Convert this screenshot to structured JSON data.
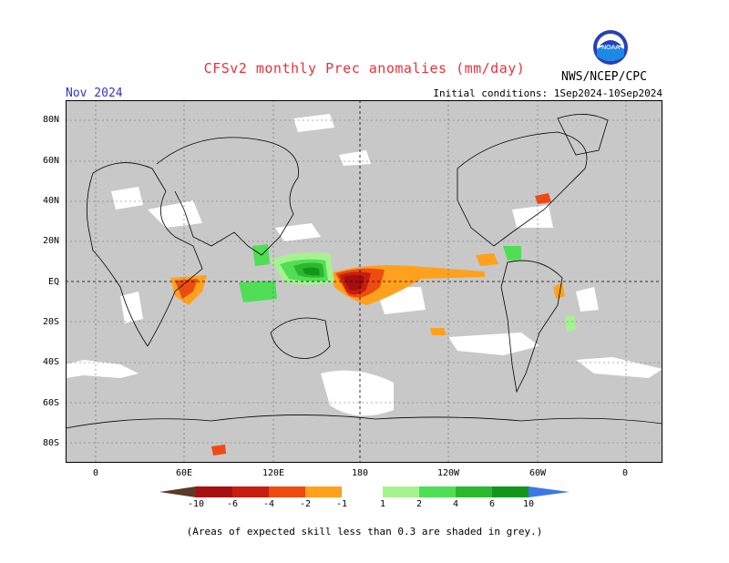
{
  "header": {
    "title": "CFSv2 monthly Prec anomalies (mm/day)",
    "month": "Nov 2024",
    "initial_conditions": "Initial conditions: 1Sep2024-10Sep2024",
    "agency": "NWS/NCEP/CPC",
    "logo_text": "NOAA"
  },
  "map": {
    "lat_labels": [
      "80N",
      "60N",
      "40N",
      "20N",
      "EQ",
      "20S",
      "40S",
      "60S",
      "80S"
    ],
    "lon_labels": [
      "0",
      "60E",
      "120E",
      "180",
      "120W",
      "60W",
      "0"
    ]
  },
  "colorbar": {
    "labels": [
      "-10",
      "-6",
      "-4",
      "-2",
      "-1",
      "1",
      "2",
      "4",
      "6",
      "10"
    ],
    "colors": [
      "#5a3a2a",
      "#a50f0f",
      "#c81e0f",
      "#ee4a12",
      "#ffa11c",
      "#ffffff",
      "#a6f28f",
      "#4fde56",
      "#2cb82d",
      "#13951b",
      "#3a78e8"
    ]
  },
  "footnote": "(Areas of expected skill less than 0.3 are shaded in grey.)",
  "colors": {
    "grey": "#c8c8c8",
    "title": "#e8313a",
    "month": "#3333cc"
  }
}
